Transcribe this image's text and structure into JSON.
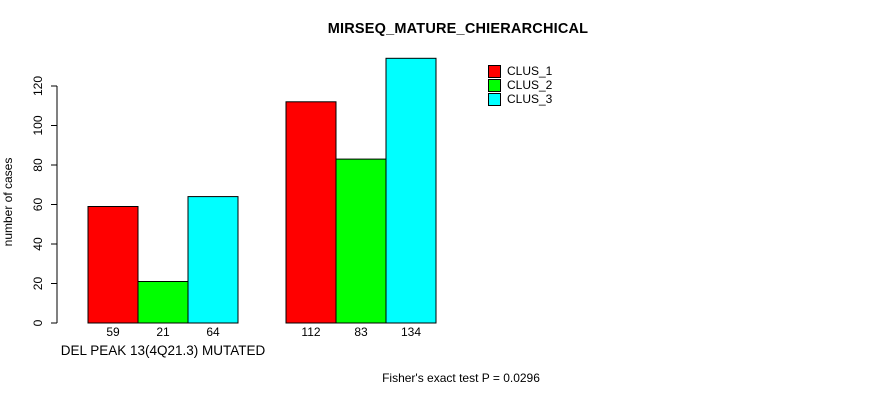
{
  "chart_data": {
    "type": "bar",
    "title": "MIRSEQ_MATURE_CHIERARCHICAL",
    "ylabel": "number of cases",
    "xlabel": "",
    "categories": [
      "DEL PEAK 13(4Q21.3) MUTATED",
      ""
    ],
    "series": [
      {
        "name": "CLUS_1",
        "color": "#ff0000",
        "values": [
          59,
          112
        ]
      },
      {
        "name": "CLUS_2",
        "color": "#00ff00",
        "values": [
          21,
          83
        ]
      },
      {
        "name": "CLUS_3",
        "color": "#00ffff",
        "values": [
          64,
          134
        ]
      }
    ],
    "bar_value_labels": [
      [
        59,
        21,
        64
      ],
      [
        112,
        83,
        134
      ]
    ],
    "yticks": [
      0,
      20,
      40,
      60,
      80,
      100,
      120
    ],
    "ylim": [
      0,
      134
    ],
    "grid": false,
    "legend_position": "top-right",
    "annotation": "Fisher's exact test P = 0.0296"
  },
  "colors": {
    "background": "#ffffff",
    "bar_border": "#000000",
    "axis": "#000000",
    "text": "#000000",
    "clus_1": "#ff0000",
    "clus_2": "#00ff00",
    "clus_3": "#00ffff"
  }
}
